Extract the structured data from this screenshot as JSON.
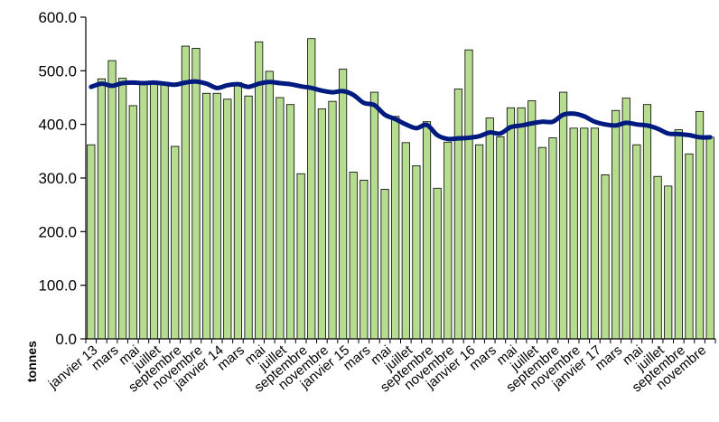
{
  "chart_data": {
    "type": "bar",
    "ylabel": "tonnes",
    "ylim": [
      0,
      600
    ],
    "yticks": [
      "0.0",
      "100.0",
      "200.0",
      "300.0",
      "400.0",
      "500.0",
      "600.0"
    ],
    "grid": false,
    "legend": "none",
    "colors": {
      "bar_fill": "#b5dc8f",
      "bar_stroke": "#000000",
      "line": "#001a80",
      "axis": "#000000"
    },
    "x_tick_labels": [
      "janvier 13",
      "mars",
      "mai",
      "juillet",
      "septembre",
      "novembre",
      "janvier 14",
      "mars",
      "mai",
      "juillet",
      "septembre",
      "novembre",
      "janvier 15",
      "mars",
      "mai",
      "juillet",
      "septembre",
      "novembre",
      "janvier 16",
      "mars",
      "mai",
      "juillet",
      "septembre",
      "novembre",
      "janvier 17",
      "mars",
      "mai",
      "juillet",
      "septembre",
      "novembre"
    ],
    "series": [
      {
        "kind": "bar",
        "values": [
          362,
          485,
          519,
          486,
          435,
          477,
          478,
          477,
          359,
          546,
          542,
          458,
          458,
          447,
          478,
          453,
          554,
          499,
          450,
          437,
          308,
          560,
          429,
          443,
          503,
          311,
          296,
          460,
          279,
          415,
          366,
          323,
          405,
          281,
          367,
          466,
          539,
          362,
          412,
          377,
          431,
          431,
          444,
          357,
          375,
          460,
          393,
          393,
          393,
          306,
          426,
          449,
          362,
          437,
          303,
          285,
          390,
          345,
          424,
          376
        ]
      },
      {
        "kind": "line",
        "values": [
          470,
          476,
          472,
          477,
          478,
          477,
          478,
          476,
          474,
          478,
          480,
          476,
          468,
          473,
          475,
          470,
          476,
          479,
          477,
          475,
          471,
          468,
          463,
          460,
          462,
          455,
          440,
          436,
          418,
          410,
          400,
          393,
          399,
          380,
          373,
          374,
          375,
          378,
          385,
          383,
          395,
          398,
          402,
          405,
          405,
          418,
          420,
          415,
          405,
          400,
          398,
          403,
          400,
          398,
          392,
          383,
          382,
          380,
          376,
          376
        ]
      }
    ]
  }
}
